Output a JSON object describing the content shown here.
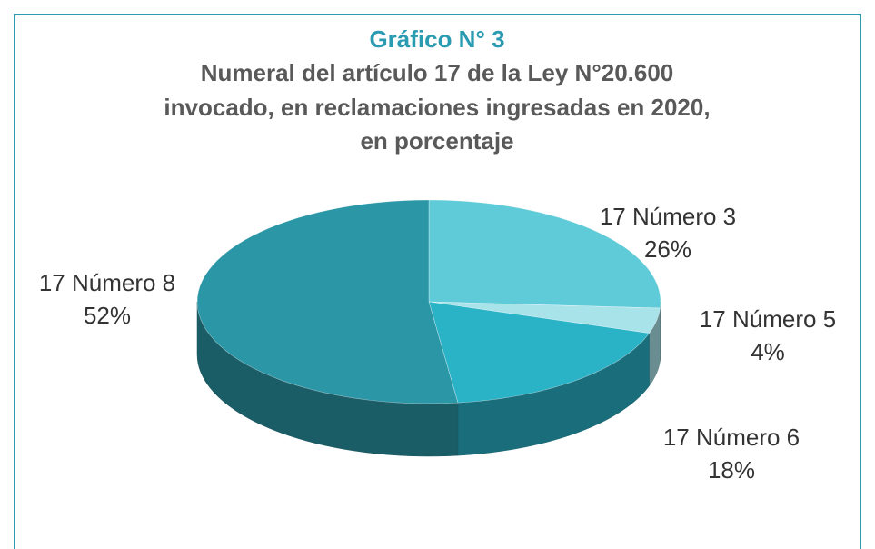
{
  "chart_data": {
    "type": "pie3d",
    "title": "Gráfico N° 3",
    "subtitle": [
      "Numeral del artículo 17 de la Ley N°20.600",
      "invocado, en reclamaciones ingresadas en 2020,",
      "en porcentaje"
    ],
    "categories": [
      "17 Número 3",
      "17 Número 5",
      "17 Número 6",
      "17 Número 8"
    ],
    "values": [
      26,
      4,
      18,
      52
    ],
    "value_labels": [
      "26%",
      "4%",
      "18%",
      "52%"
    ],
    "colors": [
      "#5fcbd8",
      "#a9e3ea",
      "#2ab2c6",
      "#2a96a6"
    ]
  }
}
